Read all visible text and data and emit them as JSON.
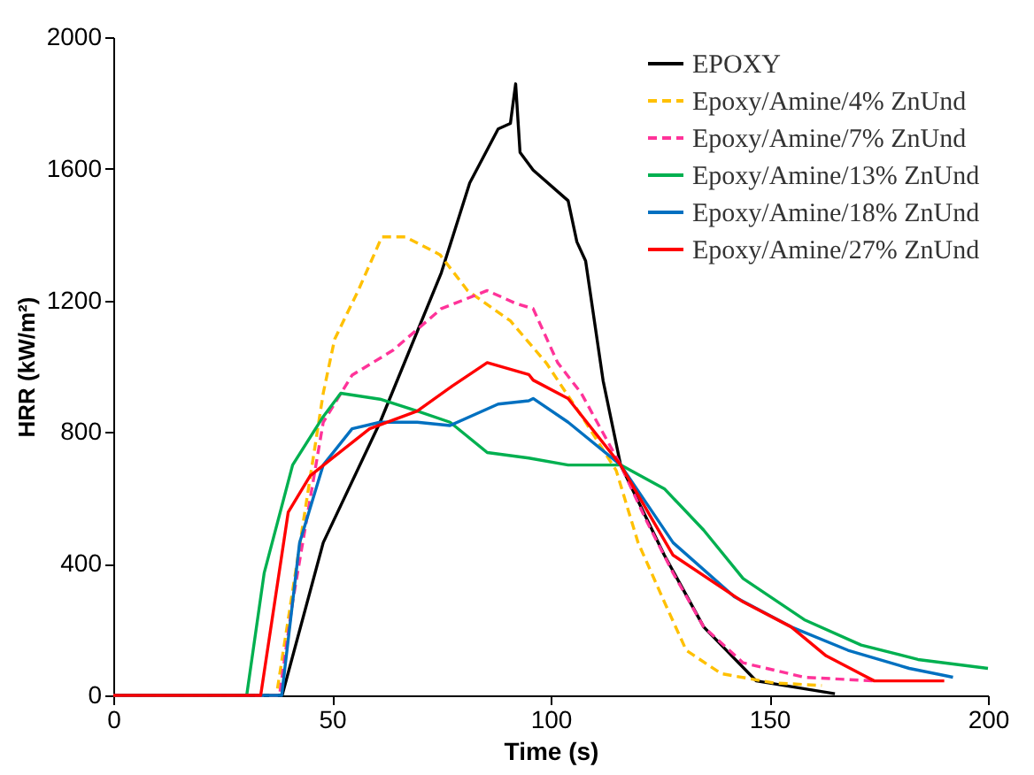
{
  "chart_data": {
    "type": "line",
    "xlabel": "Time (s)",
    "ylabel": "HRR (kW/m²)",
    "xlim": [
      0,
      200
    ],
    "xticks": [
      0,
      50,
      100,
      150,
      200
    ],
    "ylim": [
      0,
      2000
    ],
    "yticks": [
      0,
      400,
      800,
      1200,
      1600,
      2000
    ],
    "grid": false,
    "legend": "top right",
    "marker": "none",
    "series": [
      {
        "name": "EPOXY",
        "color": "#000000",
        "line_style": "solid",
        "x": [
          0,
          38.6,
          48,
          61,
          75,
          81.5,
          88,
          90.8,
          92,
          93,
          96,
          104,
          106,
          108,
          112,
          116,
          126,
          135,
          147,
          165
        ],
        "values": [
          0,
          0,
          464,
          830,
          1284,
          1557,
          1721,
          1738,
          1858,
          1650,
          1596,
          1503,
          1378,
          1320,
          956,
          700,
          426,
          208,
          44,
          5
        ]
      },
      {
        "name": "Epoxy/Amine/4% ZnUnd",
        "color": "#ffc000",
        "line_style": "dashed",
        "x": [
          0,
          37.3,
          48,
          50.6,
          56,
          61.4,
          66.8,
          74.7,
          81,
          90.8,
          99,
          108,
          115,
          120,
          126,
          131,
          139,
          151,
          162
        ],
        "values": [
          0,
          0,
          918,
          1082,
          1230,
          1393,
          1393,
          1339,
          1230,
          1138,
          1010,
          830,
          683,
          464,
          284,
          137,
          66,
          38,
          30
        ]
      },
      {
        "name": "Epoxy/Amine/7% ZnUnd",
        "color": "#ff3399",
        "line_style": "dashed",
        "x": [
          0,
          38,
          41,
          48,
          54.6,
          64,
          75,
          85.5,
          92,
          96,
          101.6,
          107,
          116,
          121.7,
          128,
          135,
          144,
          158,
          174
        ],
        "values": [
          0,
          0,
          284,
          830,
          973,
          1049,
          1175,
          1230,
          1191,
          1175,
          1011,
          918,
          700,
          536,
          372,
          208,
          99,
          55,
          44
        ]
      },
      {
        "name": "Epoxy/Amine/13% ZnUnd",
        "color": "#00b050",
        "line_style": "solid",
        "x": [
          0,
          30.5,
          34.5,
          41,
          48,
          52,
          61,
          69.5,
          77,
          85.5,
          95,
          104,
          116,
          126,
          135,
          144,
          158,
          171,
          184,
          200
        ],
        "values": [
          0,
          0,
          372,
          700,
          847,
          918,
          900,
          864,
          830,
          738,
          721,
          700,
          700,
          628,
          502,
          355,
          230,
          153,
          109,
          82
        ]
      },
      {
        "name": "Epoxy/Amine/18% ZnUnd",
        "color": "#0070c0",
        "line_style": "solid",
        "x": [
          0,
          38.5,
          42.6,
          48,
          54.6,
          61,
          69.5,
          77,
          88,
          95,
          96,
          104,
          116,
          128,
          142,
          155,
          168,
          182,
          192
        ],
        "values": [
          0,
          0,
          464,
          700,
          810,
          830,
          830,
          820,
          885,
          895,
          902,
          830,
          700,
          464,
          300,
          208,
          137,
          82,
          55
        ]
      },
      {
        "name": "Epoxy/Amine/27% ZnUnd",
        "color": "#ff0000",
        "line_style": "solid",
        "x": [
          0,
          33.7,
          40,
          45,
          50,
          58.6,
          69.5,
          77.5,
          85.5,
          95,
          96,
          104,
          116,
          128,
          144,
          155,
          163,
          174,
          190
        ],
        "values": [
          0,
          0,
          557,
          667,
          720,
          810,
          864,
          940,
          1011,
          975,
          958,
          902,
          700,
          426,
          284,
          208,
          120,
          44,
          44
        ]
      }
    ]
  }
}
